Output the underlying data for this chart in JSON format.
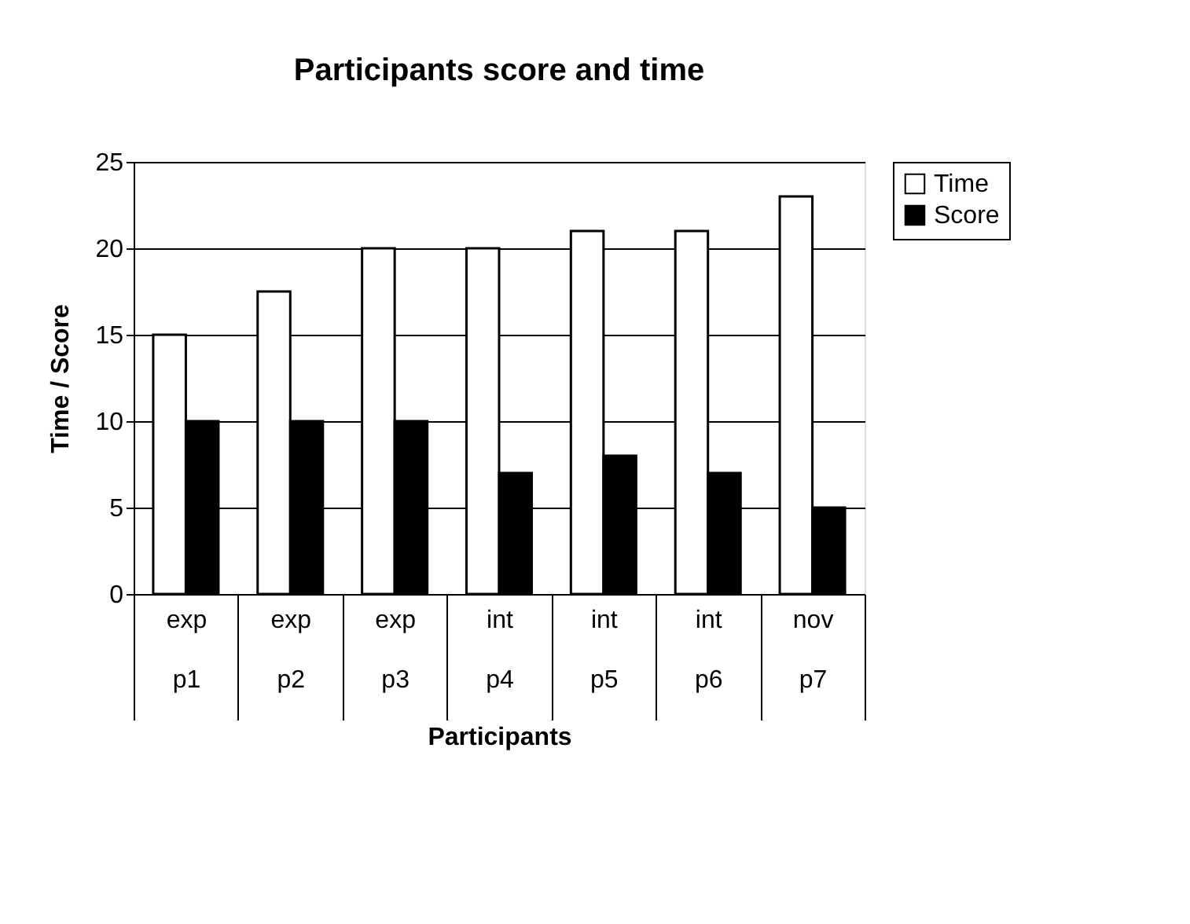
{
  "chart_data": {
    "type": "bar",
    "title": "Participants score and time",
    "xlabel": "Participants",
    "ylabel": "Time / Score",
    "categories": [
      "exp\np1",
      "exp\np2",
      "exp\np3",
      "int\np4",
      "int\np5",
      "int\np6",
      "nov\np7"
    ],
    "series": [
      {
        "name": "Time",
        "color": "#ffffff",
        "values": [
          15,
          17.5,
          20,
          20,
          21,
          21,
          23
        ]
      },
      {
        "name": "Score",
        "color": "#000000",
        "values": [
          10,
          10,
          10,
          7,
          8,
          7,
          5
        ]
      }
    ],
    "ylim": [
      0,
      25
    ],
    "yticks": [
      0,
      5,
      10,
      15,
      20,
      25
    ],
    "grid": "y",
    "legend": "right"
  }
}
